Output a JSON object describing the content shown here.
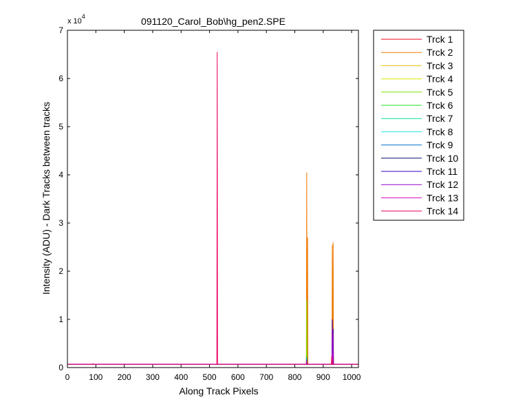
{
  "chart_data": {
    "type": "line",
    "title": "091120_Carol_Bob\\hg_pen2.SPE",
    "xlabel": "Along Track Pixels",
    "ylabel": "Intensity (ADU) - Dark Tracks between tracks",
    "y_multiplier_label": "x 10",
    "y_multiplier_exponent": "4",
    "xlim": [
      0,
      1024
    ],
    "ylim": [
      0,
      70000
    ],
    "x_ticks": [
      0,
      100,
      200,
      300,
      400,
      500,
      600,
      700,
      800,
      900,
      1000
    ],
    "y_ticks": [
      0,
      10000,
      20000,
      30000,
      40000,
      50000,
      60000,
      70000
    ],
    "y_tick_labels": [
      "0",
      "1",
      "2",
      "3",
      "4",
      "5",
      "6",
      "7"
    ],
    "grid": false,
    "legend_position": "outside-right-top",
    "baseline": 700,
    "series": [
      {
        "name": "Trck 1",
        "color": "#e8001c",
        "peaks": [
          [
            90,
            800
          ],
          [
            527,
            900
          ],
          [
            842,
            1500
          ],
          [
            930,
            2500
          ],
          [
            935,
            2000
          ]
        ]
      },
      {
        "name": "Trck 2",
        "color": "#f07800",
        "peaks": [
          [
            842,
            40500
          ],
          [
            845,
            27000
          ],
          [
            932,
            25500
          ],
          [
            935,
            26000
          ]
        ]
      },
      {
        "name": "Trck 3",
        "color": "#f0c000",
        "peaks": [
          [
            842,
            3000
          ],
          [
            932,
            3000
          ]
        ]
      },
      {
        "name": "Trck 4",
        "color": "#d4e800",
        "peaks": [
          [
            842,
            2500
          ],
          [
            932,
            2000
          ]
        ]
      },
      {
        "name": "Trck 5",
        "color": "#7ce000",
        "peaks": [
          [
            842,
            14000
          ],
          [
            932,
            2000
          ]
        ]
      },
      {
        "name": "Trck 6",
        "color": "#20e020",
        "peaks": [
          [
            842,
            2500
          ],
          [
            932,
            1500
          ]
        ]
      },
      {
        "name": "Trck 7",
        "color": "#00e090",
        "peaks": [
          [
            842,
            2000
          ],
          [
            932,
            1500
          ]
        ]
      },
      {
        "name": "Trck 8",
        "color": "#20e0e0",
        "peaks": [
          [
            842,
            1800
          ],
          [
            932,
            1500
          ]
        ]
      },
      {
        "name": "Trck 9",
        "color": "#0070d0",
        "peaks": [
          [
            842,
            2000
          ],
          [
            932,
            1800
          ]
        ]
      },
      {
        "name": "Trck 10",
        "color": "#001070",
        "peaks": [
          [
            842,
            1500
          ],
          [
            932,
            2500
          ]
        ]
      },
      {
        "name": "Trck 11",
        "color": "#3000c8",
        "peaks": [
          [
            842,
            1500
          ],
          [
            932,
            10000
          ],
          [
            935,
            8000
          ]
        ]
      },
      {
        "name": "Trck 12",
        "color": "#9000c8",
        "peaks": [
          [
            842,
            1500
          ],
          [
            932,
            8000
          ],
          [
            935,
            7000
          ]
        ]
      },
      {
        "name": "Trck 13",
        "color": "#e000c0",
        "peaks": [
          [
            842,
            1200
          ],
          [
            932,
            3000
          ]
        ]
      },
      {
        "name": "Trck 14",
        "color": "#e80060",
        "peaks": [
          [
            527,
            65500
          ],
          [
            932,
            2000
          ]
        ]
      }
    ]
  }
}
